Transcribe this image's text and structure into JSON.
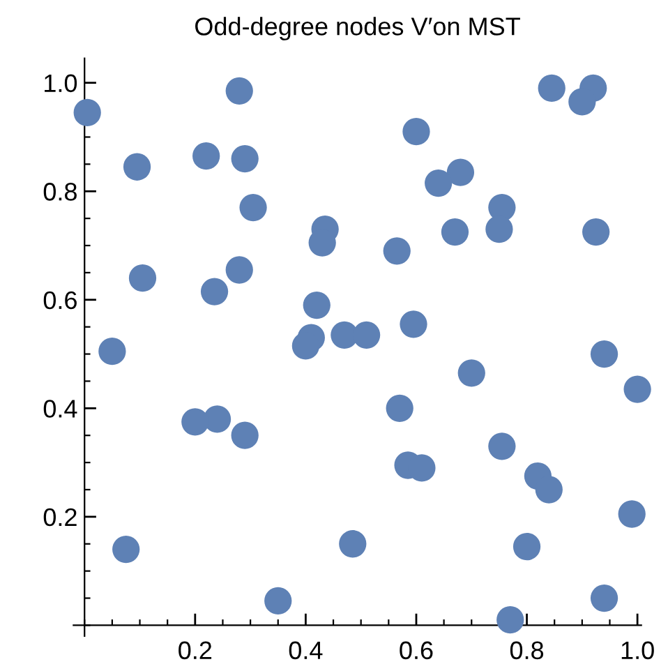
{
  "chart_data": {
    "type": "scatter",
    "title": "Odd-degree nodes V′on MST",
    "x": [
      0.005,
      0.05,
      0.075,
      0.095,
      0.105,
      0.2,
      0.22,
      0.235,
      0.24,
      0.28,
      0.28,
      0.29,
      0.29,
      0.305,
      0.35,
      0.4,
      0.41,
      0.42,
      0.43,
      0.435,
      0.47,
      0.485,
      0.51,
      0.565,
      0.57,
      0.585,
      0.595,
      0.6,
      0.61,
      0.64,
      0.67,
      0.68,
      0.7,
      0.75,
      0.755,
      0.755,
      0.77,
      0.8,
      0.82,
      0.84,
      0.845,
      0.9,
      0.92,
      0.925,
      0.94,
      0.94,
      0.99,
      1.0
    ],
    "values": [
      0.945,
      0.505,
      0.14,
      0.845,
      0.64,
      0.375,
      0.865,
      0.615,
      0.38,
      0.655,
      0.985,
      0.86,
      0.35,
      0.77,
      0.045,
      0.515,
      0.53,
      0.59,
      0.705,
      0.73,
      0.535,
      0.15,
      0.535,
      0.69,
      0.4,
      0.295,
      0.555,
      0.91,
      0.29,
      0.815,
      0.725,
      0.835,
      0.465,
      0.73,
      0.77,
      0.33,
      0.01,
      0.145,
      0.275,
      0.25,
      0.99,
      0.965,
      0.99,
      0.725,
      0.5,
      0.05,
      0.205,
      0.435
    ],
    "color": "#5e81b5",
    "marker": "circle",
    "xlim": [
      -0.02,
      1.007
    ],
    "ylim": [
      -0.02,
      1.045
    ],
    "xticks": [
      0.2,
      0.4,
      0.6,
      0.8,
      {
        "value": 1,
        "label": "1.0"
      }
    ],
    "yticks": [
      0.2,
      0.4,
      0.6,
      0.8,
      {
        "value": 1,
        "label": "1.0"
      }
    ]
  }
}
